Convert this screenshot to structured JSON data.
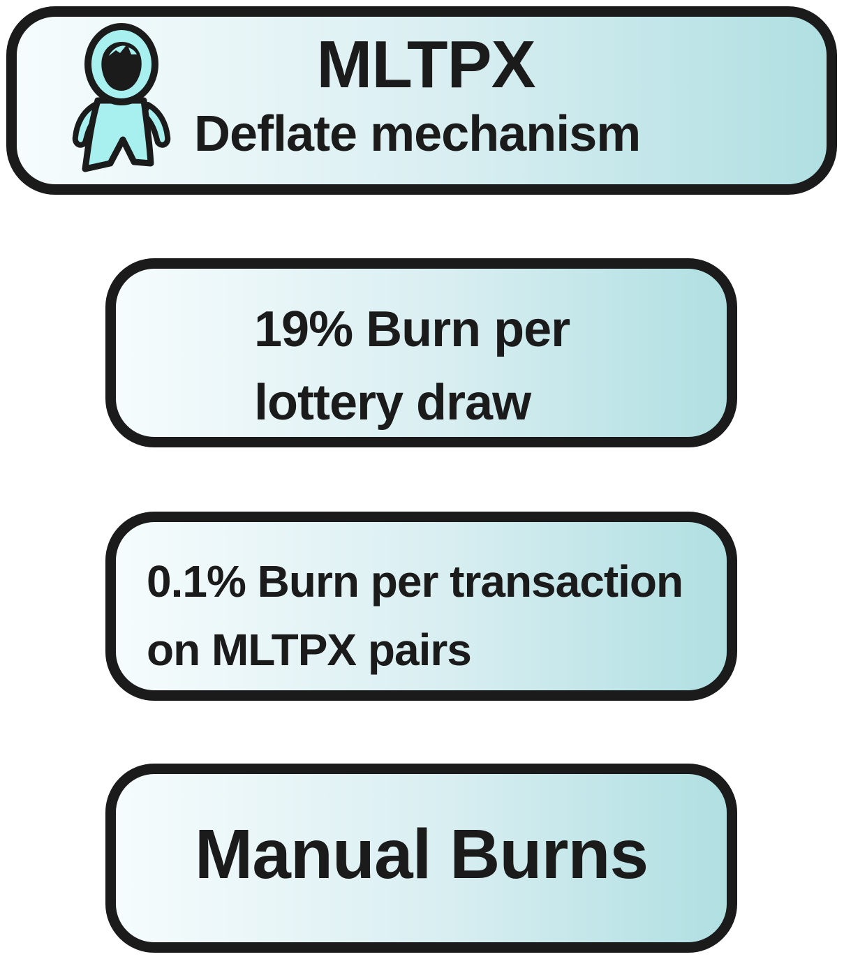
{
  "header": {
    "title": "MLTPX",
    "subtitle": "Deflate mechanism",
    "mascot_icon": "mascot-icon"
  },
  "mechanisms": [
    {
      "lines": [
        "19% Burn per",
        "lottery draw"
      ]
    },
    {
      "lines": [
        "0.1% Burn per transaction",
        "on MLTPX pairs"
      ]
    },
    {
      "lines": [
        "Manual Burns"
      ]
    }
  ],
  "colors": {
    "outline": "#1b1b1b",
    "gradient_start": "#f6fcfd",
    "gradient_end": "#b0dfe2",
    "mascot_fill": "#a8f0f0"
  }
}
